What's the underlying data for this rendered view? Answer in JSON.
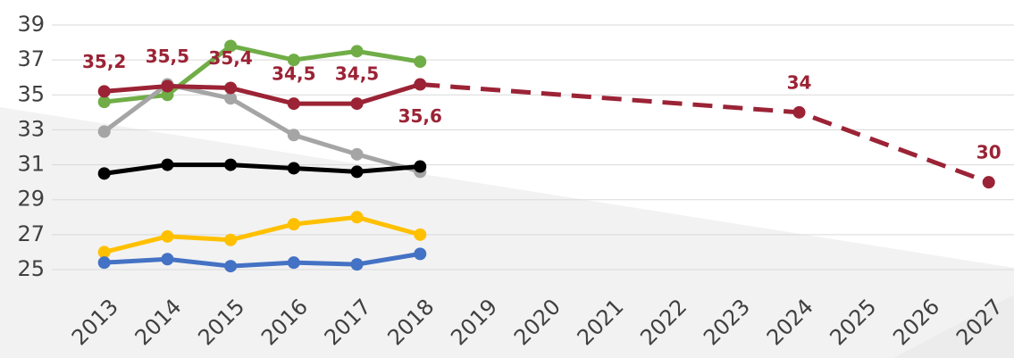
{
  "chart_data": {
    "type": "line",
    "x": [
      2013,
      2014,
      2015,
      2016,
      2017,
      2018
    ],
    "xlim": [
      2011.35,
      2027.4
    ],
    "xticks": [
      2013,
      2014,
      2015,
      2016,
      2017,
      2018,
      2019,
      2020,
      2021,
      2022,
      2023,
      2024,
      2025,
      2026,
      2027
    ],
    "ylim": [
      25,
      39
    ],
    "yticks": [
      25,
      27,
      29,
      31,
      33,
      35,
      37,
      39
    ],
    "grid": true,
    "series": [
      {
        "color": "#70ad47",
        "values": [
          34.6,
          35.0,
          37.8,
          37.0,
          37.5,
          36.9
        ]
      },
      {
        "color": "#a5a5a5",
        "values": [
          32.9,
          35.6,
          34.8,
          32.7,
          31.6,
          30.6
        ]
      },
      {
        "color": "#000000",
        "values": [
          30.5,
          31.0,
          31.0,
          30.8,
          30.6,
          30.9
        ]
      },
      {
        "color": "#ffc000",
        "values": [
          26.0,
          26.9,
          26.7,
          27.6,
          28.0,
          27.0
        ]
      },
      {
        "color": "#4472c4",
        "values": [
          25.4,
          25.6,
          25.2,
          25.4,
          25.3,
          25.9
        ]
      },
      {
        "color": "#9b2335",
        "values": [
          35.2,
          35.5,
          35.4,
          34.5,
          34.5,
          35.6
        ],
        "value_labels": [
          "35,2",
          "35,5",
          "35,4",
          "34,5",
          "34,5",
          "35,6"
        ]
      },
      {
        "color": "#9b2335",
        "dashed": true,
        "x": [
          2018,
          2024,
          2027
        ],
        "values": [
          35.6,
          34,
          30
        ],
        "value_labels": [
          null,
          "34",
          "30"
        ]
      }
    ]
  }
}
